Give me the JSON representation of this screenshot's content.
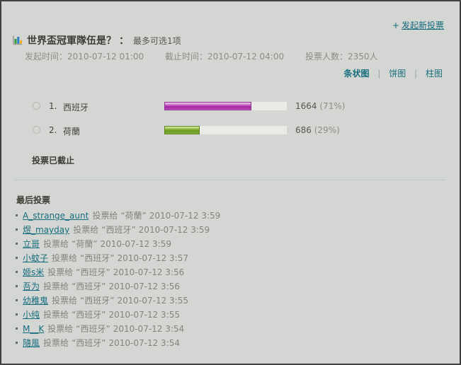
{
  "page": {
    "new_poll": {
      "plus": "+",
      "label": "发起新投票"
    },
    "chart_tabs": {
      "bar_label": "条状图",
      "pie_label": "饼图",
      "column_label": "柱图",
      "separator": "|",
      "active": "条状图"
    }
  },
  "poll": {
    "title": "世界盃冠軍隊伍是？",
    "title_colon": "：",
    "limit_note": "最多可选1项",
    "meta": {
      "start": "发起时间：2010-07-12 01:00",
      "end": "截止时间：2010-07-12 04:00",
      "voters": "投票人数：2350人"
    },
    "closed_notice": "投票已截止",
    "options": [
      {
        "index": "1.",
        "name": "西班牙",
        "votes": "1664",
        "percent_label": "(71%)",
        "percent_value": 71,
        "bar_color": "#a62ba6"
      },
      {
        "index": "2.",
        "name": "荷蘭",
        "votes": "686",
        "percent_label": "(29%)",
        "percent_value": 29,
        "bar_color": "#6f9c26"
      }
    ]
  },
  "last_votes": {
    "header": "最后投票",
    "action_text": "投票给",
    "items": [
      {
        "user": "A_strange_aunt",
        "choice": "“荷蘭”",
        "time": "2010-07-12 3:59"
      },
      {
        "user": "煜_mayday",
        "choice": "“西班牙”",
        "time": "2010-07-12 3:59"
      },
      {
        "user": "立哥",
        "choice": "“荷蘭”",
        "time": "2010-07-12 3:59"
      },
      {
        "user": "小蚊子",
        "choice": "“西班牙”",
        "time": "2010-07-12 3:57"
      },
      {
        "user": "姬s米",
        "choice": "“西班牙”",
        "time": "2010-07-12 3:56"
      },
      {
        "user": "吾为",
        "choice": "“西班牙”",
        "time": "2010-07-12 3:56"
      },
      {
        "user": "幼稚鬼",
        "choice": "“西班牙”",
        "time": "2010-07-12 3:55"
      },
      {
        "user": "小纯",
        "choice": "“西班牙”",
        "time": "2010-07-12 3:55"
      },
      {
        "user": "M__K",
        "choice": "“西班牙”",
        "time": "2010-07-12 3:54"
      },
      {
        "user": "隨風",
        "choice": "“西班牙”",
        "time": "2010-07-12 3:54"
      }
    ]
  },
  "colors": {
    "background": "#d4d6d3",
    "border": "#404040",
    "link_teal": "#156d7e",
    "text_dark": "#3c3e35",
    "text_gray": "#8b8e85",
    "bar_purple": "#a62ba6",
    "bar_green": "#6f9c26",
    "bar_track": "#eceae7",
    "dotted_separator": "#a9c2bf"
  }
}
